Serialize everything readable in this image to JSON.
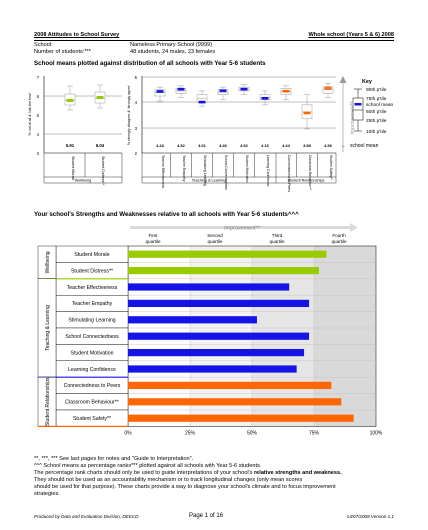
{
  "header": {
    "left_title": "2008 Attitudes to School Survey",
    "right_title": "Whole school (Years 5 & 6) 2008",
    "school_label": "School:",
    "school_value": "Nameless Primary School (9999)",
    "students_label": "Number of students:***",
    "students_value": "48 students, 24 males, 23 females"
  },
  "boxplot_section": {
    "title": "School means plotted against distribution of all schools with Year 5-6 students",
    "left_panel": {
      "ylabel": "% not at all & ‘hall the time’",
      "yticks": [
        "7",
        "6",
        "5",
        "4",
        "3"
      ],
      "means": [
        "5.91",
        "6.04"
      ],
      "items": [
        "Student Morale",
        "Student Distress**"
      ],
      "group": "Wellbeing"
    },
    "right_panel": {
      "ylabel": "% strongly disagree & ‘strongly agree’",
      "yticks": [
        "5",
        "4",
        "3",
        "2"
      ],
      "means": [
        "4.43",
        "4.52",
        "4.01",
        "4.46",
        "4.52",
        "4.16",
        "4.44",
        "3.58",
        "4.56"
      ],
      "items": [
        "Teacher Effectiveness",
        "Teacher Empathy",
        "Stimulating Learning",
        "School Connectedness",
        "Student Motivation",
        "Learning Confidence",
        "Connectedness to Peers",
        "Classroom Behaviour**",
        "Student Safety**"
      ],
      "group_left": "Teaching & Learning",
      "group_right": "Student Relationships"
    },
    "key": {
      "title": "Key",
      "entries": [
        "90th p'tile",
        "75th p'tile",
        "school mean",
        "50th p'tile",
        "25th p'tile",
        "10th p'tile"
      ],
      "arrow_label": "Improvement**",
      "mean_label": "school mean"
    }
  },
  "bar_section": {
    "title": "Your school's Strengths and Weaknesses relative to all schools with Year 5-6 students^^^",
    "improvement_label": "Improvement**",
    "quartiles": [
      "First quartile",
      "Second quartile",
      "Third quartile",
      "Fourth quartile"
    ],
    "groups": [
      "Wellbeing",
      "Teaching & Learning",
      "Student Relationships"
    ],
    "xticks": [
      "0%",
      "25%",
      "50%",
      "75%",
      "100%"
    ]
  },
  "chart_data": {
    "type": "bar",
    "orientation": "horizontal",
    "title": "Your school's Strengths and Weaknesses relative to all schools with Year 5-6 students^^^",
    "categories": [
      "Student Morale",
      "Student Distress**",
      "Teacher Effectiveness",
      "Teacher Empathy",
      "Stimulating Learning",
      "School Connectedness",
      "Student Motivation",
      "Learning Confidence",
      "Connectedness to Peers",
      "Classroom Behaviour**",
      "Student Safety**"
    ],
    "values": [
      80,
      77,
      65,
      73,
      52,
      73,
      71,
      68,
      82,
      86,
      91
    ],
    "group_of_category": [
      "Wellbeing",
      "Wellbeing",
      "Teaching & Learning",
      "Teaching & Learning",
      "Teaching & Learning",
      "Teaching & Learning",
      "Teaching & Learning",
      "Teaching & Learning",
      "Student Relationships",
      "Student Relationships",
      "Student Relationships"
    ],
    "colors": {
      "Wellbeing": "#99cc00",
      "Teaching & Learning": "#1414e6",
      "Student Relationships": "#ff6600"
    },
    "xlim": [
      0,
      100
    ],
    "xlabel": "",
    "ylabel": "",
    "grid": true
  },
  "footer": {
    "notes": [
      "**, ***, ***  See last pages for notes and \"Guide to Interpretation\".",
      "^^^  School means as percentage ranks*** plotted against all schools with Year 5-6 students."
    ],
    "para_lead": "The percentage rank charts should only be used to guide interpretations of your school's ",
    "para_bold": "relative strengths and weakness.",
    "para_rest": [
      "They should not be used as an accountability mechanism or to track longitudinal changes (only mean scores",
      "should be used for that purpose). These charts provide a way to diagnose your school's climate and to focus improvement",
      "strategies."
    ],
    "produced_by": "Produced by Data and Evaluation Division, DEECD",
    "page": "Page 1 of 16",
    "version": "14/07/2008 Version 1.1"
  }
}
